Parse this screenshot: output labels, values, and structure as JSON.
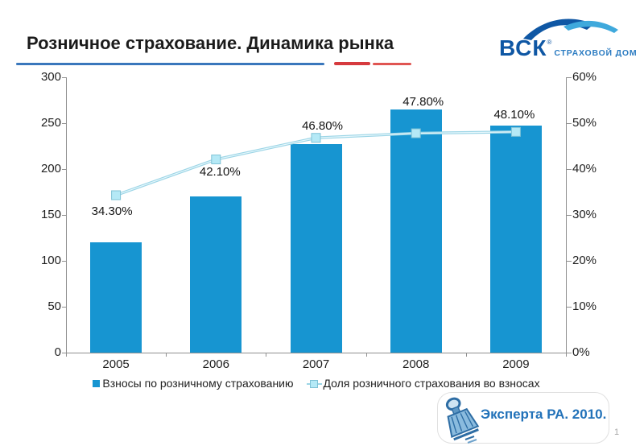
{
  "slide": {
    "title": "Розничное страхование. Динамика рынка",
    "source": "Эксперта РА. 2010.",
    "page_number": "1"
  },
  "logo": {
    "name": "ВСК",
    "registered": "®",
    "tagline": "СТРАХОВОЙ ДОМ"
  },
  "chart_data": {
    "type": "bar",
    "categories": [
      "2005",
      "2006",
      "2007",
      "2008",
      "2009"
    ],
    "series": [
      {
        "name": "Взносы по розничному страхованию",
        "type": "bar",
        "axis": "left",
        "values": [
          120,
          170,
          227,
          265,
          247
        ],
        "color": "#1795d1"
      },
      {
        "name": "Доля розничного страхования во взносах",
        "type": "line",
        "axis": "right",
        "values": [
          34.3,
          42.1,
          46.8,
          47.8,
          48.1
        ],
        "point_labels": [
          "34.30%",
          "42.10%",
          "46.80%",
          "47.80%",
          "48.10%"
        ],
        "line_color": "#9cd5e6",
        "marker_color": "#b5e9f6",
        "marker_border": "#7fc2d6"
      }
    ],
    "left_axis": {
      "min": 0,
      "max": 300,
      "step": 50
    },
    "right_axis": {
      "min": 0,
      "max": 60,
      "step": 10,
      "suffix": "%"
    },
    "legend_position": "bottom",
    "grid": false,
    "title": ""
  },
  "colors": {
    "bar": "#1795d1",
    "line": "#9cd5e6",
    "marker": "#b5e9f6",
    "title_rule_blue": "#3a77bc",
    "title_rule_red": "#d63a3e",
    "logo_dark_blue": "#0f57a4",
    "logo_light_blue": "#3fa9dc",
    "logo_tagline_blue": "#2c7cc2",
    "source_blue": "#2272b9",
    "axis_gray": "#8f8f8f"
  }
}
